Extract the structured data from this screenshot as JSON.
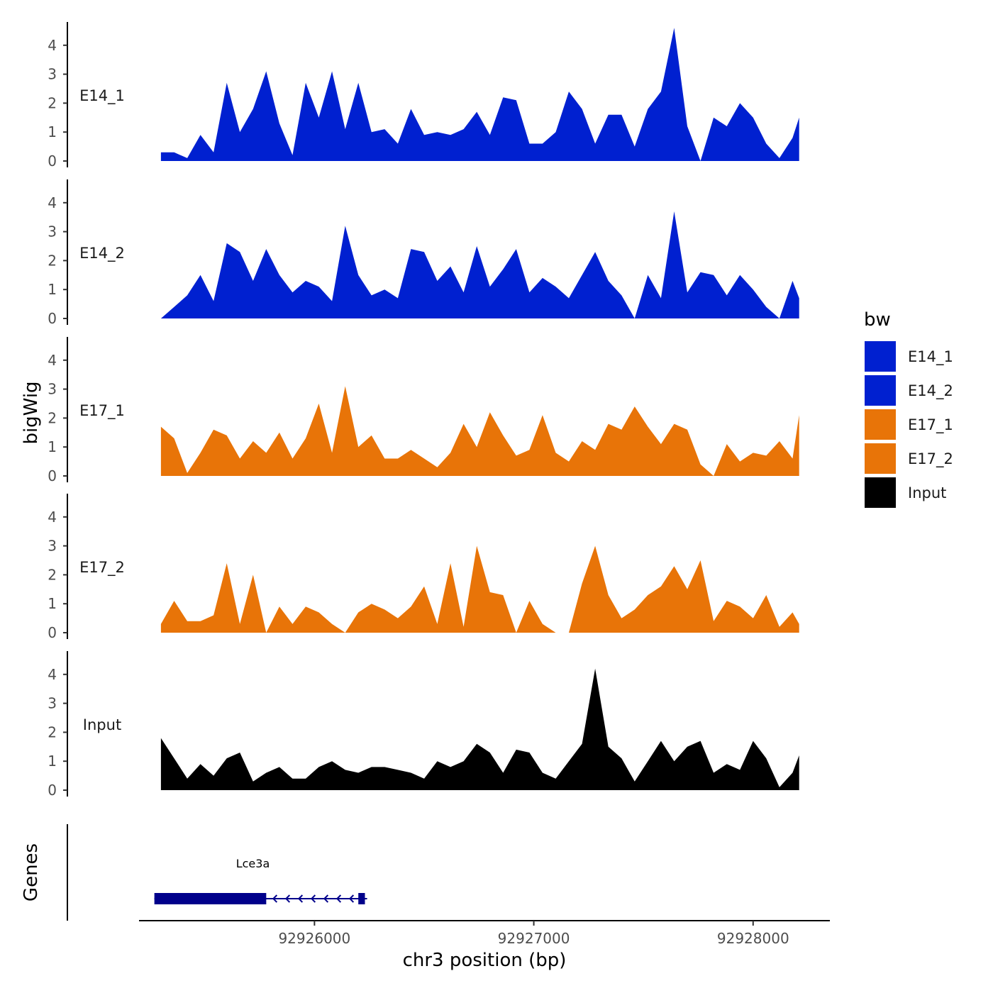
{
  "chart_data": {
    "type": "area",
    "ylabel": "bigWig",
    "xlabel": "chr3 position (bp)",
    "xlim": [
      92925200,
      92928350
    ],
    "ylim": [
      0,
      4.8
    ],
    "y_ticks": [
      0,
      1,
      2,
      3,
      4
    ],
    "x_ticks": [
      92926000,
      92927000,
      92928000
    ],
    "x_tick_labels": [
      "92926000",
      "92927000",
      "92928000"
    ],
    "legend": {
      "title": "bw",
      "position": "right",
      "items": [
        {
          "label": "E14_1",
          "color": "#0020D0"
        },
        {
          "label": "E14_2",
          "color": "#0020D0"
        },
        {
          "label": "E17_1",
          "color": "#E87408"
        },
        {
          "label": "E17_2",
          "color": "#E87408"
        },
        {
          "label": "Input",
          "color": "#000000"
        }
      ]
    },
    "series": [
      {
        "name": "E14_1",
        "color": "#0020D0",
        "x": [
          92925300,
          92925360,
          92925420,
          92925480,
          92925540,
          92925600,
          92925660,
          92925720,
          92925780,
          92925840,
          92925900,
          92925960,
          92926020,
          92926080,
          92926140,
          92926200,
          92926260,
          92926320,
          92926380,
          92926440,
          92926500,
          92926560,
          92926620,
          92926680,
          92926740,
          92926800,
          92926860,
          92926920,
          92926980,
          92927040,
          92927100,
          92927160,
          92927220,
          92927280,
          92927340,
          92927400,
          92927460,
          92927520,
          92927580,
          92927640,
          92927700,
          92927760,
          92927820,
          92927880,
          92927940,
          92928000,
          92928060,
          92928120,
          92928180,
          92928210
        ],
        "values": [
          0.3,
          0.3,
          0.1,
          0.9,
          0.3,
          2.7,
          1.0,
          1.8,
          3.1,
          1.3,
          0.2,
          2.7,
          1.5,
          3.1,
          1.1,
          2.7,
          1.0,
          1.1,
          0.6,
          1.8,
          0.9,
          1.0,
          0.9,
          1.1,
          1.7,
          0.9,
          2.2,
          2.1,
          0.6,
          0.6,
          1.0,
          2.4,
          1.8,
          0.6,
          1.6,
          1.6,
          0.5,
          1.8,
          2.4,
          4.6,
          1.2,
          0.0,
          1.5,
          1.2,
          2.0,
          1.5,
          0.6,
          0.1,
          0.8,
          1.5
        ]
      },
      {
        "name": "E14_2",
        "color": "#0020D0",
        "x": [
          92925300,
          92925360,
          92925420,
          92925480,
          92925540,
          92925600,
          92925660,
          92925720,
          92925780,
          92925840,
          92925900,
          92925960,
          92926020,
          92926080,
          92926140,
          92926200,
          92926260,
          92926320,
          92926380,
          92926440,
          92926500,
          92926560,
          92926620,
          92926680,
          92926740,
          92926800,
          92926860,
          92926920,
          92926980,
          92927040,
          92927100,
          92927160,
          92927220,
          92927280,
          92927340,
          92927400,
          92927460,
          92927520,
          92927580,
          92927640,
          92927700,
          92927760,
          92927820,
          92927880,
          92927940,
          92928000,
          92928060,
          92928120,
          92928180,
          92928210
        ],
        "values": [
          0.0,
          0.4,
          0.8,
          1.5,
          0.6,
          2.6,
          2.3,
          1.3,
          2.4,
          1.5,
          0.9,
          1.3,
          1.1,
          0.6,
          3.2,
          1.5,
          0.8,
          1.0,
          0.7,
          2.4,
          2.3,
          1.3,
          1.8,
          0.9,
          2.5,
          1.1,
          1.7,
          2.4,
          0.9,
          1.4,
          1.1,
          0.7,
          1.5,
          2.3,
          1.3,
          0.8,
          0.0,
          1.5,
          0.7,
          3.7,
          0.9,
          1.6,
          1.5,
          0.8,
          1.5,
          1.0,
          0.4,
          0.0,
          1.3,
          0.7
        ]
      },
      {
        "name": "E17_1",
        "color": "#E87408",
        "x": [
          92925300,
          92925360,
          92925420,
          92925480,
          92925540,
          92925600,
          92925660,
          92925720,
          92925780,
          92925840,
          92925900,
          92925960,
          92926020,
          92926080,
          92926140,
          92926200,
          92926260,
          92926320,
          92926380,
          92926440,
          92926500,
          92926560,
          92926620,
          92926680,
          92926740,
          92926800,
          92926860,
          92926920,
          92926980,
          92927040,
          92927100,
          92927160,
          92927220,
          92927280,
          92927340,
          92927400,
          92927460,
          92927520,
          92927580,
          92927640,
          92927700,
          92927760,
          92927820,
          92927880,
          92927940,
          92928000,
          92928060,
          92928120,
          92928180,
          92928210
        ],
        "values": [
          1.7,
          1.3,
          0.1,
          0.8,
          1.6,
          1.4,
          0.6,
          1.2,
          0.8,
          1.5,
          0.6,
          1.3,
          2.5,
          0.8,
          3.1,
          1.0,
          1.4,
          0.6,
          0.6,
          0.9,
          0.6,
          0.3,
          0.8,
          1.8,
          1.0,
          2.2,
          1.4,
          0.7,
          0.9,
          2.1,
          0.8,
          0.5,
          1.2,
          0.9,
          1.8,
          1.6,
          2.4,
          1.7,
          1.1,
          1.8,
          1.6,
          0.4,
          0.0,
          1.1,
          0.5,
          0.8,
          0.7,
          1.2,
          0.6,
          2.1
        ]
      },
      {
        "name": "E17_2",
        "color": "#E87408",
        "x": [
          92925300,
          92925360,
          92925420,
          92925480,
          92925540,
          92925600,
          92925660,
          92925720,
          92925780,
          92925840,
          92925900,
          92925960,
          92926020,
          92926080,
          92926140,
          92926200,
          92926260,
          92926320,
          92926380,
          92926440,
          92926500,
          92926560,
          92926620,
          92926680,
          92926740,
          92926800,
          92926860,
          92926920,
          92926980,
          92927040,
          92927100,
          92927160,
          92927220,
          92927280,
          92927340,
          92927400,
          92927460,
          92927520,
          92927580,
          92927640,
          92927700,
          92927760,
          92927820,
          92927880,
          92927940,
          92928000,
          92928060,
          92928120,
          92928180,
          92928210
        ],
        "values": [
          0.3,
          1.1,
          0.4,
          0.4,
          0.6,
          2.4,
          0.3,
          2.0,
          0.0,
          0.9,
          0.3,
          0.9,
          0.7,
          0.3,
          0.0,
          0.7,
          1.0,
          0.8,
          0.5,
          0.9,
          1.6,
          0.3,
          2.4,
          0.2,
          3.0,
          1.4,
          1.3,
          0.0,
          1.1,
          0.3,
          0.0,
          0.0,
          1.7,
          3.0,
          1.3,
          0.5,
          0.8,
          1.3,
          1.6,
          2.3,
          1.5,
          2.5,
          0.4,
          1.1,
          0.9,
          0.5,
          1.3,
          0.2,
          0.7,
          0.3
        ]
      },
      {
        "name": "Input",
        "color": "#000000",
        "x": [
          92925300,
          92925360,
          92925420,
          92925480,
          92925540,
          92925600,
          92925660,
          92925720,
          92925780,
          92925840,
          92925900,
          92925960,
          92926020,
          92926080,
          92926140,
          92926200,
          92926260,
          92926320,
          92926380,
          92926440,
          92926500,
          92926560,
          92926620,
          92926680,
          92926740,
          92926800,
          92926860,
          92926920,
          92926980,
          92927040,
          92927100,
          92927160,
          92927220,
          92927280,
          92927340,
          92927400,
          92927460,
          92927520,
          92927580,
          92927640,
          92927700,
          92927760,
          92927820,
          92927880,
          92927940,
          92928000,
          92928060,
          92928120,
          92928180,
          92928210
        ],
        "values": [
          1.8,
          1.1,
          0.4,
          0.9,
          0.5,
          1.1,
          1.3,
          0.3,
          0.6,
          0.8,
          0.4,
          0.4,
          0.8,
          1.0,
          0.7,
          0.6,
          0.8,
          0.8,
          0.7,
          0.6,
          0.4,
          1.0,
          0.8,
          1.0,
          1.6,
          1.3,
          0.6,
          1.4,
          1.3,
          0.6,
          0.4,
          1.0,
          1.6,
          4.2,
          1.5,
          1.1,
          0.3,
          1.0,
          1.7,
          1.0,
          1.5,
          1.7,
          0.6,
          0.9,
          0.7,
          1.7,
          1.1,
          0.1,
          0.6,
          1.2
        ]
      }
    ],
    "genes": [
      {
        "name": "Lce3a",
        "start": 92925270,
        "end": 92926240,
        "thick_start": 92925270,
        "thick_end": 92925780,
        "strand": "-",
        "exon2_start": 92926200,
        "exon2_end": 92926230,
        "color": "#00008B"
      }
    ],
    "gene_track_label": "Genes"
  }
}
